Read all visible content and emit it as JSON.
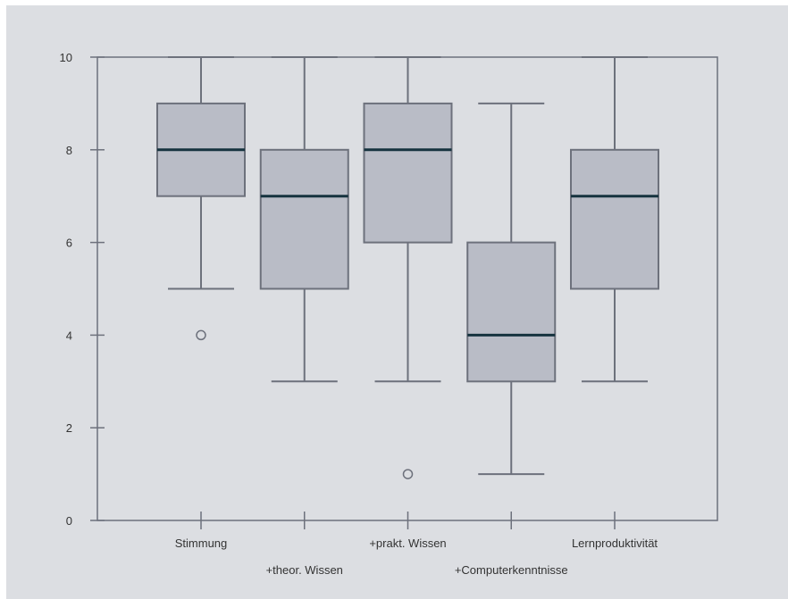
{
  "chart_data": {
    "type": "box",
    "categories": [
      "Stimmung",
      "+theor. Wissen",
      "+prakt. Wissen",
      "+Computerkenntnisse",
      "Lernproduktivität"
    ],
    "boxes": [
      {
        "whisker_low": 5,
        "q1": 7,
        "median": 8,
        "q3": 9,
        "whisker_high": 10,
        "outliers": [
          4
        ]
      },
      {
        "whisker_low": 3,
        "q1": 5,
        "median": 7,
        "q3": 8,
        "whisker_high": 10,
        "outliers": []
      },
      {
        "whisker_low": 3,
        "q1": 6,
        "median": 8,
        "q3": 9,
        "whisker_high": 10,
        "outliers": [
          1
        ]
      },
      {
        "whisker_low": 1,
        "q1": 3,
        "median": 4,
        "q3": 6,
        "whisker_high": 9,
        "outliers": []
      },
      {
        "whisker_low": 3,
        "q1": 5,
        "median": 7,
        "q3": 8,
        "whisker_high": 10,
        "outliers": []
      }
    ],
    "y_ticks": [
      "0",
      "2",
      "4",
      "6",
      "8",
      "10"
    ],
    "ylim": [
      0,
      10
    ],
    "grid": false,
    "colors": {
      "box_fill": "#b9bcc6",
      "box_stroke": "#6d717c",
      "median": "#16333f",
      "axis": "#6d717c"
    }
  }
}
